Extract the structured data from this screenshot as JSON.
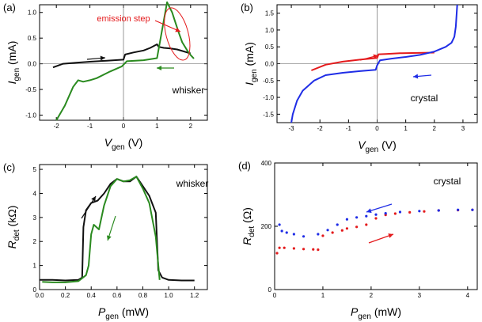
{
  "chart_data": [
    {
      "panel": "(a)",
      "type": "line",
      "xlabel": "V",
      "xlabel_sub": "gen",
      "xunit": "(V)",
      "ylabel": "I",
      "ylabel_sub": "gen",
      "yunit": "(mA)",
      "xlim": [
        -2.5,
        2.5
      ],
      "ylim": [
        -1.1,
        1.15
      ],
      "xticks": [
        "-2",
        "-1",
        "0",
        "1",
        "2"
      ],
      "xtick_values": [
        -2,
        -1,
        0,
        1,
        2
      ],
      "yticks": [
        "-1.0",
        "-0.5",
        "0.0",
        "0.5",
        "1.0"
      ],
      "ytick_values": [
        -1.0,
        -0.5,
        0.0,
        0.5,
        1.0
      ],
      "label": "whisker",
      "annotation": "emission step",
      "colors": {
        "up": "#111111",
        "down": "#2a8a1f",
        "annotation": "#e41a1c"
      },
      "series": [
        {
          "x": [
            -2.1,
            -1.8,
            -1.4,
            -1.0,
            -0.5,
            0.0,
            0.05,
            0.3,
            0.6,
            0.8,
            1.0,
            1.05,
            1.2,
            1.4,
            1.6,
            1.8,
            2.0
          ],
          "y": [
            -0.07,
            0.0,
            0.02,
            0.04,
            0.06,
            0.08,
            0.18,
            0.22,
            0.26,
            0.31,
            0.38,
            0.33,
            0.31,
            0.3,
            0.28,
            0.24,
            0.2
          ]
        },
        {
          "x": [
            2.1,
            2.0,
            1.9,
            1.75,
            1.65,
            1.55,
            1.45,
            1.3,
            1.0,
            0.6,
            0.1,
            -0.05,
            -0.4,
            -0.8,
            -1.0,
            -1.2,
            -1.35,
            -1.5,
            -1.75,
            -2.0
          ],
          "y": [
            0.1,
            0.17,
            0.26,
            0.42,
            0.6,
            0.8,
            1.0,
            1.2,
            0.11,
            0.07,
            0.05,
            -0.05,
            -0.15,
            -0.28,
            -0.32,
            -0.35,
            -0.32,
            -0.45,
            -0.82,
            -1.1
          ]
        }
      ]
    },
    {
      "panel": "(b)",
      "type": "line",
      "xlabel": "V",
      "xlabel_sub": "gen",
      "xunit": "(V)",
      "ylabel": "I",
      "ylabel_sub": "gen",
      "yunit": "(mA)",
      "xlim": [
        -3.5,
        3.5
      ],
      "ylim": [
        -1.75,
        1.75
      ],
      "xticks": [
        "-3",
        "-2",
        "-1",
        "0",
        "1",
        "2",
        "3"
      ],
      "xtick_values": [
        -3,
        -2,
        -1,
        0,
        1,
        2,
        3
      ],
      "yticks": [
        "-1.5",
        "-1.0",
        "-0.5",
        "0.0",
        "0.5",
        "1.0",
        "1.5"
      ],
      "ytick_values": [
        -1.5,
        -1.0,
        -0.5,
        0.0,
        0.5,
        1.0,
        1.5
      ],
      "label": "crystal",
      "colors": {
        "up": "#e41a1c",
        "down": "#1f2de6"
      },
      "series": [
        {
          "x": [
            -2.3,
            -1.8,
            -1.2,
            -0.6,
            0.0,
            0.05,
            0.3,
            0.8,
            1.4,
            2.0
          ],
          "y": [
            -0.2,
            -0.03,
            0.06,
            0.12,
            0.17,
            0.28,
            0.29,
            0.31,
            0.32,
            0.33
          ]
        },
        {
          "x": [
            2.8,
            2.75,
            2.7,
            2.6,
            2.4,
            2.0,
            1.5,
            1.0,
            0.5,
            0.1,
            0.0,
            -0.05,
            -0.6,
            -1.2,
            -1.8,
            -2.2,
            -2.6,
            -2.8,
            -2.95,
            -3.0
          ],
          "y": [
            1.75,
            1.1,
            0.8,
            0.62,
            0.5,
            0.36,
            0.26,
            0.2,
            0.15,
            0.1,
            -0.05,
            -0.18,
            -0.22,
            -0.27,
            -0.34,
            -0.5,
            -0.8,
            -1.1,
            -1.5,
            -1.75
          ]
        }
      ]
    },
    {
      "panel": "(c)",
      "type": "line",
      "xlabel": "P",
      "xlabel_sub": "gen",
      "xunit": "(mW)",
      "ylabel": "R",
      "ylabel_sub": "det",
      "yunit": "(kΩ)",
      "xlim": [
        0,
        1.3
      ],
      "ylim": [
        0,
        5.2
      ],
      "xticks": [
        "0.0",
        "0.2",
        "0.4",
        "0.6",
        "0.8",
        "1.0",
        "1.2"
      ],
      "xtick_values": [
        0.0,
        0.2,
        0.4,
        0.6,
        0.8,
        1.0,
        1.2
      ],
      "yticks": [
        "0",
        "1",
        "2",
        "3",
        "4",
        "5"
      ],
      "ytick_values": [
        0,
        1,
        2,
        3,
        4,
        5
      ],
      "label": "whisker",
      "colors": {
        "up": "#111111",
        "down": "#2a8a1f"
      },
      "series": [
        {
          "x": [
            0.0,
            0.1,
            0.2,
            0.3,
            0.33,
            0.34,
            0.36,
            0.4,
            0.45,
            0.5,
            0.55,
            0.6,
            0.65,
            0.7,
            0.75,
            0.8,
            0.85,
            0.9,
            0.92,
            0.95,
            1.0,
            1.1,
            1.2
          ],
          "y": [
            0.4,
            0.4,
            0.38,
            0.4,
            0.5,
            2.6,
            3.3,
            3.6,
            3.7,
            4.0,
            4.4,
            4.6,
            4.5,
            4.5,
            4.7,
            4.3,
            3.9,
            3.2,
            0.8,
            0.5,
            0.4,
            0.38,
            0.38
          ]
        },
        {
          "x": [
            0.93,
            0.9,
            0.85,
            0.8,
            0.75,
            0.7,
            0.65,
            0.6,
            0.55,
            0.5,
            0.46,
            0.42,
            0.4,
            0.38,
            0.36,
            0.3,
            0.2,
            0.1,
            0.02
          ],
          "y": [
            0.4,
            2.2,
            3.6,
            4.2,
            4.7,
            4.55,
            4.5,
            4.6,
            4.3,
            3.5,
            2.5,
            2.7,
            2.3,
            1.0,
            0.6,
            0.35,
            0.3,
            0.3,
            0.32
          ]
        }
      ]
    },
    {
      "panel": "(d)",
      "type": "scatter",
      "xlabel": "P",
      "xlabel_sub": "gen",
      "xunit": "(mW)",
      "ylabel": "R",
      "ylabel_sub": "det",
      "yunit": "(Ω)",
      "xlim": [
        0,
        4.2
      ],
      "ylim": [
        0,
        400
      ],
      "xticks": [
        "0",
        "1",
        "2",
        "3",
        "4"
      ],
      "xtick_values": [
        0,
        1,
        2,
        3,
        4
      ],
      "yticks": [
        "0",
        "200",
        "400"
      ],
      "ytick_values": [
        0,
        200,
        400
      ],
      "label": "crystal",
      "colors": {
        "up": "#e41a1c",
        "down": "#1f2de6"
      },
      "series": [
        {
          "x": [
            0.05,
            0.1,
            0.2,
            0.4,
            0.6,
            0.8,
            0.9,
            1.0,
            1.2,
            1.4,
            1.5,
            1.7,
            1.9,
            2.1,
            2.3,
            2.5,
            2.8,
            3.1,
            3.4,
            3.8,
            4.1
          ],
          "y": [
            115,
            132,
            132,
            130,
            128,
            127,
            126,
            170,
            180,
            187,
            193,
            198,
            205,
            225,
            236,
            240,
            244,
            247,
            250,
            251,
            252
          ]
        },
        {
          "x": [
            4.1,
            3.8,
            3.4,
            3.0,
            2.6,
            2.3,
            2.1,
            1.9,
            1.7,
            1.5,
            1.3,
            1.1,
            0.9,
            0.6,
            0.4,
            0.25,
            0.15,
            0.1
          ],
          "y": [
            252,
            252,
            250,
            248,
            245,
            241,
            237,
            232,
            228,
            222,
            205,
            188,
            175,
            168,
            175,
            180,
            185,
            205
          ]
        }
      ]
    }
  ]
}
